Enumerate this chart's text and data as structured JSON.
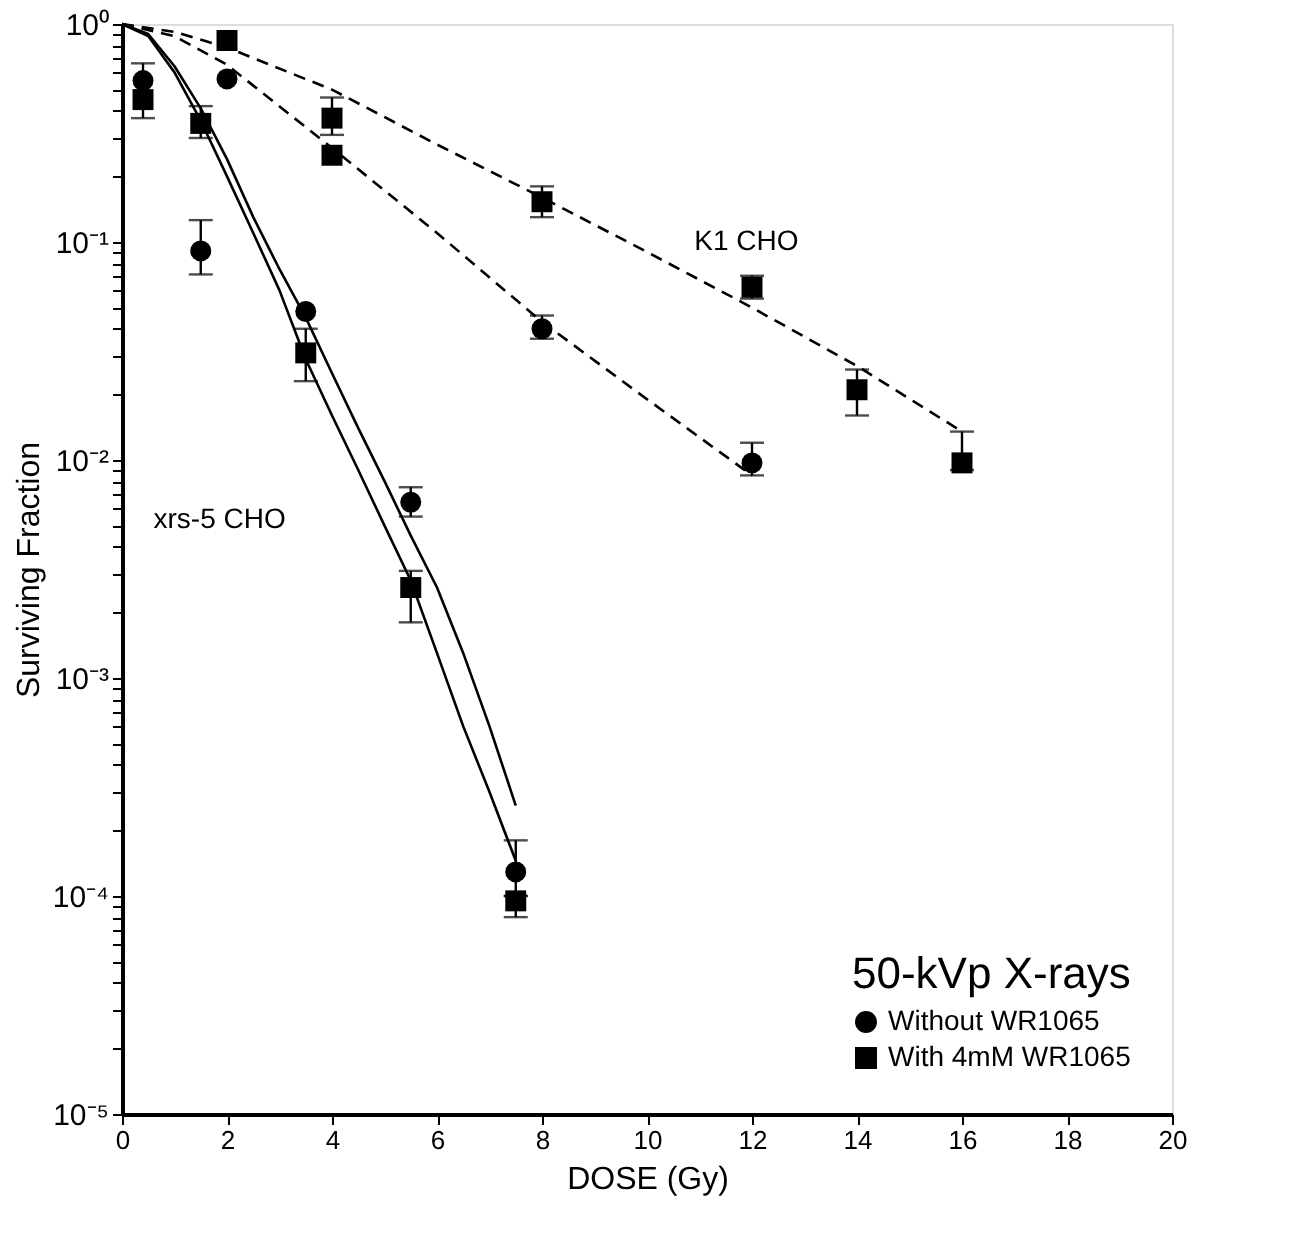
{
  "chart_data": {
    "type": "scatter",
    "xlabel": "DOSE (Gy)",
    "ylabel": "Surviving Fraction",
    "legend_title": "50-kVp X-rays",
    "legend": "bottom right",
    "log": "y",
    "grid": false,
    "xlim": [
      0,
      20
    ],
    "xticks": [
      0,
      2,
      4,
      6,
      8,
      10,
      12,
      14,
      16,
      18,
      20
    ],
    "ylim": [
      1e-05,
      1
    ],
    "yticks": [
      {
        "value": 1e-05,
        "label": "10⁻⁵"
      },
      {
        "value": 2e-05,
        "label": null
      },
      {
        "value": 3e-05,
        "label": null
      },
      {
        "value": 4e-05,
        "label": null
      },
      {
        "value": 5e-05,
        "label": null
      },
      {
        "value": 6e-05,
        "label": null
      },
      {
        "value": 7e-05,
        "label": null
      },
      {
        "value": 8e-05,
        "label": null
      },
      {
        "value": 9e-05,
        "label": null
      },
      {
        "value": 0.0001,
        "label": "10⁻⁴"
      },
      {
        "value": 0.0002,
        "label": null
      },
      {
        "value": 0.0003,
        "label": null
      },
      {
        "value": 0.0004,
        "label": null
      },
      {
        "value": 0.0005,
        "label": null
      },
      {
        "value": 0.0006,
        "label": null
      },
      {
        "value": 0.0007,
        "label": null
      },
      {
        "value": 0.0008,
        "label": null
      },
      {
        "value": 0.0009,
        "label": null
      },
      {
        "value": 0.001,
        "label": "10⁻³"
      },
      {
        "value": 0.002,
        "label": null
      },
      {
        "value": 0.003,
        "label": null
      },
      {
        "value": 0.004,
        "label": null
      },
      {
        "value": 0.005,
        "label": null
      },
      {
        "value": 0.006,
        "label": null
      },
      {
        "value": 0.007,
        "label": null
      },
      {
        "value": 0.008,
        "label": null
      },
      {
        "value": 0.009,
        "label": null
      },
      {
        "value": 0.01,
        "label": "10⁻²"
      },
      {
        "value": 0.02,
        "label": null
      },
      {
        "value": 0.03,
        "label": null
      },
      {
        "value": 0.04,
        "label": null
      },
      {
        "value": 0.05,
        "label": null
      },
      {
        "value": 0.06,
        "label": null
      },
      {
        "value": 0.07,
        "label": null
      },
      {
        "value": 0.08,
        "label": null
      },
      {
        "value": 0.09,
        "label": null
      },
      {
        "value": 0.1,
        "label": "10⁻¹"
      },
      {
        "value": 0.2,
        "label": null
      },
      {
        "value": 0.3,
        "label": null
      },
      {
        "value": 0.4,
        "label": null
      },
      {
        "value": 0.5,
        "label": null
      },
      {
        "value": 0.6,
        "label": null
      },
      {
        "value": 0.7,
        "label": null
      },
      {
        "value": 0.8,
        "label": null
      },
      {
        "value": 0.9,
        "label": null
      },
      {
        "value": 1,
        "label": "10⁰"
      }
    ],
    "annotations": [
      "K1 CHO",
      "xrs-5 CHO"
    ],
    "series": [
      {
        "name": "Without WR1065",
        "marker": "circle",
        "color": "#000000",
        "x": [
          0.4,
          1.5,
          2,
          3.5,
          5.5,
          7.5,
          8,
          12
        ],
        "values": [
          0.55,
          0.091,
          0.56,
          0.048,
          0.0064,
          0.000129,
          0.04,
          0.0097
        ],
        "errors": [
          null,
          [
            0.071,
            0.126
          ],
          null,
          null,
          [
            0.0055,
            0.0075
          ],
          [
            0.0001,
            0.00018
          ],
          [
            0.036,
            0.046
          ],
          [
            0.0085,
            0.012
          ]
        ]
      },
      {
        "name": "With 4mM WR1065",
        "marker": "square",
        "color": "#000000",
        "x": [
          0.4,
          1.5,
          2,
          4,
          4,
          3.5,
          5.5,
          7.5,
          8,
          12,
          14,
          16
        ],
        "values": [
          0.45,
          0.35,
          0.84,
          0.37,
          0.25,
          0.031,
          0.0026,
          9.5e-05,
          0.153,
          0.062,
          0.021,
          0.0097
        ],
        "errors": [
          [
            0.37,
            0.66
          ],
          [
            0.3,
            0.42
          ],
          null,
          [
            0.31,
            0.46
          ],
          null,
          [
            0.023,
            0.04
          ],
          [
            0.0018,
            0.0031
          ],
          [
            8e-05,
            0.0001
          ],
          [
            0.13,
            0.18
          ],
          [
            0.055,
            0.07
          ],
          [
            0.016,
            0.026
          ],
          [
            0.009,
            0.0135
          ]
        ]
      },
      {
        "type": "line",
        "line_style": "dashed",
        "color": "#000000",
        "x": [
          0,
          1,
          2,
          4,
          6,
          8,
          10,
          12,
          14,
          16
        ],
        "values": [
          1,
          0.92,
          0.78,
          0.5,
          0.28,
          0.16,
          0.09,
          0.05,
          0.027,
          0.0135
        ]
      },
      {
        "type": "line",
        "line_style": "dashed",
        "color": "#000000",
        "x": [
          0,
          1,
          2,
          4,
          6,
          8,
          10,
          12
        ],
        "values": [
          1,
          0.88,
          0.65,
          0.27,
          0.11,
          0.043,
          0.019,
          0.0085
        ]
      },
      {
        "type": "line",
        "line_style": "solid",
        "color": "#000000",
        "x": [
          0,
          0.5,
          1,
          1.5,
          2,
          2.5,
          3,
          3.5,
          4,
          4.5,
          5,
          5.5,
          6,
          6.5,
          7,
          7.5
        ],
        "values": [
          1,
          0.88,
          0.6,
          0.36,
          0.2,
          0.11,
          0.06,
          0.029,
          0.016,
          0.009,
          0.005,
          0.0028,
          0.0013,
          0.0006,
          0.0003,
          0.000145
        ]
      },
      {
        "type": "line",
        "line_style": "solid",
        "color": "#000000",
        "x": [
          0,
          0.5,
          1,
          1.5,
          2,
          2.5,
          3,
          3.5,
          4,
          4.5,
          5,
          5.5,
          6,
          6.5,
          7,
          7.5
        ],
        "values": [
          1,
          0.9,
          0.64,
          0.41,
          0.24,
          0.13,
          0.075,
          0.045,
          0.025,
          0.014,
          0.008,
          0.0045,
          0.0026,
          0.0013,
          0.0006,
          0.00026
        ]
      }
    ]
  }
}
